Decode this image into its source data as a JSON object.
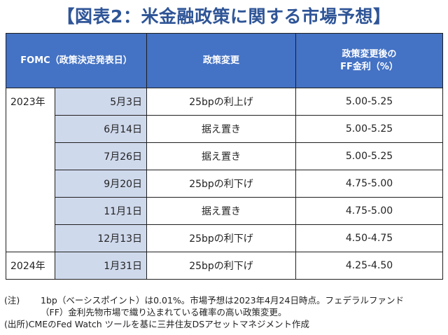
{
  "title": "【図表2：米金融政策に関する市場予想】",
  "table": {
    "headers": {
      "fomc": "FOMC（政策決定発表日）",
      "policy": "政策変更",
      "rate_line1": "政策変更後の",
      "rate_line2": "FF金利（%）"
    },
    "years": [
      "2023年",
      "2024年"
    ],
    "rows": [
      {
        "date": "5月3日",
        "policy": "25bpの利上げ",
        "rate": "5.00-5.25"
      },
      {
        "date": "6月14日",
        "policy": "据え置き",
        "rate": "5.00-5.25"
      },
      {
        "date": "7月26日",
        "policy": "据え置き",
        "rate": "5.00-5.25"
      },
      {
        "date": "9月20日",
        "policy": "25bpの利下げ",
        "rate": "4.75-5.00"
      },
      {
        "date": "11月1日",
        "policy": "据え置き",
        "rate": "4.75-5.00"
      },
      {
        "date": "12月13日",
        "policy": "25bpの利下げ",
        "rate": "4.50-4.75"
      },
      {
        "date": "1月31日",
        "policy": "25bpの利下げ",
        "rate": "4.25-4.50"
      }
    ]
  },
  "notes": {
    "note_label": "(注)",
    "note_line1": "1bp（ベーシスポイント）は0.01%。市場予想は2023年4月24日時点。フェデラルファンド",
    "note_line2": "（FF）金利先物市場で織り込まれている確率の高い政策変更。",
    "source_label": "(出所)",
    "source_text": "CMEのFed Watch ツールを基に三井住友DSアセットマネジメント作成"
  }
}
